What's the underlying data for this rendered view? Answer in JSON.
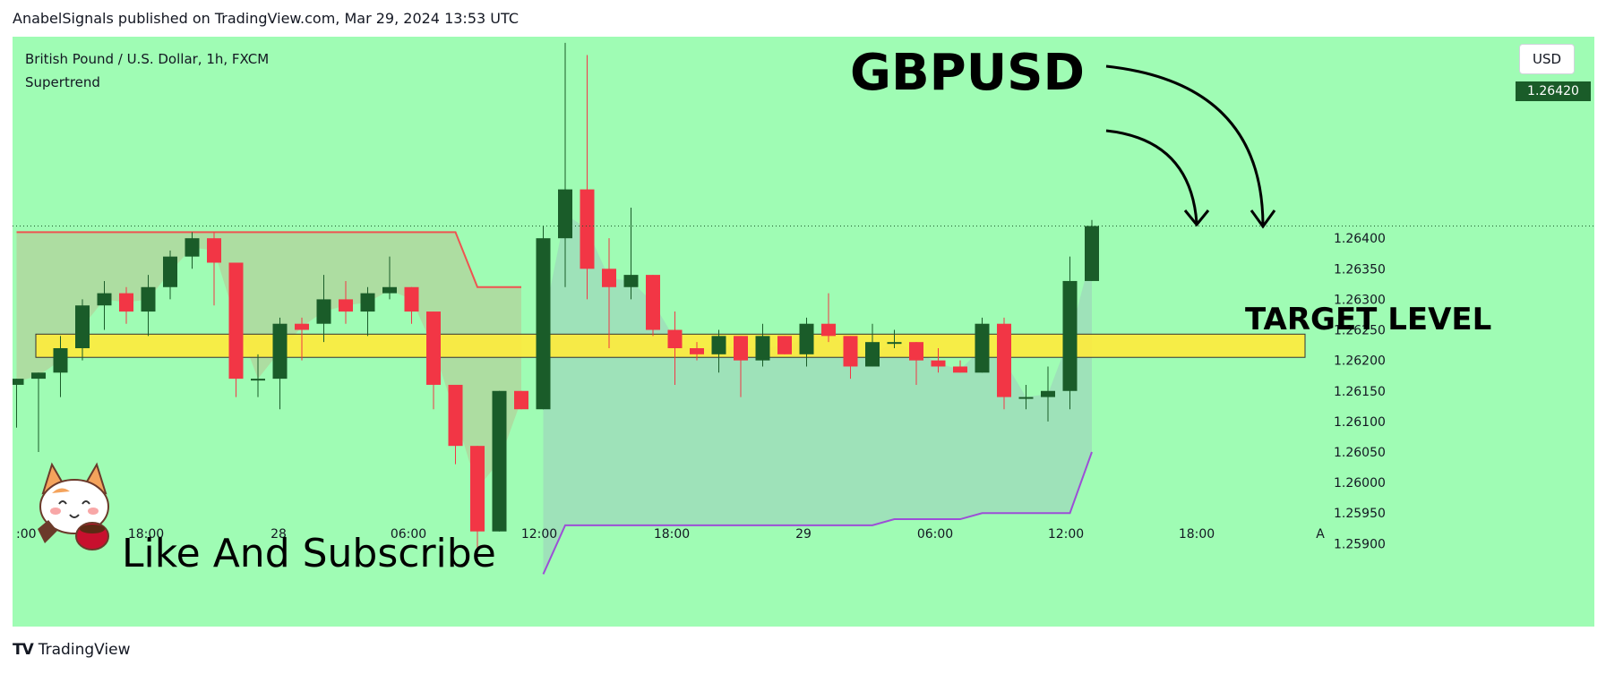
{
  "header": {
    "published_line": "AnabelSignals published on TradingView.com, Mar 29, 2024 13:53 UTC"
  },
  "legend": {
    "symbol_line": "British Pound / U.S. Dollar, 1h, FXCM",
    "indicator": "Supertrend"
  },
  "toolbar": {
    "currency_label": "USD"
  },
  "annotations": {
    "title": "GBPUSD",
    "target_label": "TARGET LEVEL",
    "cta": "Like And Subscribe"
  },
  "footer": {
    "brand": "TradingView"
  },
  "colors": {
    "background": "#9ffcb4",
    "up": "#1a5c29",
    "down": "#f23645",
    "zone": "#ffeb3b",
    "st_down": "#ef5350",
    "st_up": "#9c4fd6"
  },
  "chart_data": {
    "type": "candlestick",
    "symbol": "GBPUSD",
    "timeframe": "1h",
    "last_price": "1.26420",
    "ylim": [
      1.2588,
      1.2673
    ],
    "y_ticks": [
      "1.26400",
      "1.26350",
      "1.26300",
      "1.26250",
      "1.26200",
      "1.26150",
      "1.26100",
      "1.26050",
      "1.26000",
      "1.25950",
      "1.25900"
    ],
    "x_ticks": [
      ":00",
      "18:00",
      "28",
      "06:00",
      "12:00",
      "18:00",
      "29",
      "06:00",
      "12:00",
      "18:00",
      "A"
    ],
    "target_zone": [
      1.26205,
      1.26243
    ],
    "candles": [
      {
        "o": 1.2616,
        "h": 1.2617,
        "l": 1.2609,
        "c": 1.2617
      },
      {
        "o": 1.2617,
        "h": 1.2618,
        "l": 1.2605,
        "c": 1.2618
      },
      {
        "o": 1.2618,
        "h": 1.2624,
        "l": 1.2614,
        "c": 1.2622
      },
      {
        "o": 1.2622,
        "h": 1.263,
        "l": 1.262,
        "c": 1.2629
      },
      {
        "o": 1.2629,
        "h": 1.2633,
        "l": 1.2625,
        "c": 1.2631
      },
      {
        "o": 1.2631,
        "h": 1.2632,
        "l": 1.2626,
        "c": 1.2628
      },
      {
        "o": 1.2628,
        "h": 1.2634,
        "l": 1.2624,
        "c": 1.2632
      },
      {
        "o": 1.2632,
        "h": 1.2638,
        "l": 1.263,
        "c": 1.2637
      },
      {
        "o": 1.2637,
        "h": 1.2641,
        "l": 1.2635,
        "c": 1.264
      },
      {
        "o": 1.264,
        "h": 1.2641,
        "l": 1.2629,
        "c": 1.2636
      },
      {
        "o": 1.2636,
        "h": 1.2636,
        "l": 1.2614,
        "c": 1.2617
      },
      {
        "o": 1.2617,
        "h": 1.2621,
        "l": 1.2614,
        "c": 1.2617
      },
      {
        "o": 1.2617,
        "h": 1.2627,
        "l": 1.2612,
        "c": 1.2626
      },
      {
        "o": 1.2626,
        "h": 1.2627,
        "l": 1.262,
        "c": 1.2625
      },
      {
        "o": 1.2626,
        "h": 1.2634,
        "l": 1.2623,
        "c": 1.263
      },
      {
        "o": 1.263,
        "h": 1.2633,
        "l": 1.2626,
        "c": 1.2628
      },
      {
        "o": 1.2628,
        "h": 1.2632,
        "l": 1.2624,
        "c": 1.2631
      },
      {
        "o": 1.2631,
        "h": 1.2637,
        "l": 1.263,
        "c": 1.2632
      },
      {
        "o": 1.2632,
        "h": 1.2632,
        "l": 1.2626,
        "c": 1.2628
      },
      {
        "o": 1.2628,
        "h": 1.2628,
        "l": 1.2612,
        "c": 1.2616
      },
      {
        "o": 1.2616,
        "h": 1.2616,
        "l": 1.2603,
        "c": 1.2606
      },
      {
        "o": 1.2606,
        "h": 1.2606,
        "l": 1.2589,
        "c": 1.2592
      },
      {
        "o": 1.2592,
        "h": 1.2615,
        "l": 1.2592,
        "c": 1.2615
      },
      {
        "o": 1.2615,
        "h": 1.2615,
        "l": 1.2612,
        "c": 1.2612
      },
      {
        "o": 1.2612,
        "h": 1.2642,
        "l": 1.2612,
        "c": 1.264
      },
      {
        "o": 1.264,
        "h": 1.2672,
        "l": 1.2632,
        "c": 1.2648
      },
      {
        "o": 1.2648,
        "h": 1.267,
        "l": 1.263,
        "c": 1.2635
      },
      {
        "o": 1.2635,
        "h": 1.264,
        "l": 1.2622,
        "c": 1.2632
      },
      {
        "o": 1.2632,
        "h": 1.2645,
        "l": 1.263,
        "c": 1.2634
      },
      {
        "o": 1.2634,
        "h": 1.2634,
        "l": 1.2624,
        "c": 1.2625
      },
      {
        "o": 1.2625,
        "h": 1.2628,
        "l": 1.2616,
        "c": 1.2622
      },
      {
        "o": 1.2622,
        "h": 1.2623,
        "l": 1.262,
        "c": 1.2621
      },
      {
        "o": 1.2621,
        "h": 1.2625,
        "l": 1.2618,
        "c": 1.2624
      },
      {
        "o": 1.2624,
        "h": 1.2624,
        "l": 1.2614,
        "c": 1.262
      },
      {
        "o": 1.262,
        "h": 1.2626,
        "l": 1.2619,
        "c": 1.2624
      },
      {
        "o": 1.2624,
        "h": 1.2624,
        "l": 1.2621,
        "c": 1.2621
      },
      {
        "o": 1.2621,
        "h": 1.2627,
        "l": 1.2619,
        "c": 1.2626
      },
      {
        "o": 1.2626,
        "h": 1.2631,
        "l": 1.2623,
        "c": 1.2624
      },
      {
        "o": 1.2624,
        "h": 1.2624,
        "l": 1.2617,
        "c": 1.2619
      },
      {
        "o": 1.2619,
        "h": 1.2626,
        "l": 1.2619,
        "c": 1.2623
      },
      {
        "o": 1.2623,
        "h": 1.2625,
        "l": 1.2622,
        "c": 1.2623
      },
      {
        "o": 1.2623,
        "h": 1.2623,
        "l": 1.2616,
        "c": 1.262
      },
      {
        "o": 1.262,
        "h": 1.2622,
        "l": 1.2618,
        "c": 1.2619
      },
      {
        "o": 1.2619,
        "h": 1.262,
        "l": 1.2618,
        "c": 1.2618
      },
      {
        "o": 1.2618,
        "h": 1.2627,
        "l": 1.2618,
        "c": 1.2626
      },
      {
        "o": 1.2626,
        "h": 1.2627,
        "l": 1.2612,
        "c": 1.2614
      },
      {
        "o": 1.2614,
        "h": 1.2616,
        "l": 1.2612,
        "c": 1.2614
      },
      {
        "o": 1.2614,
        "h": 1.2619,
        "l": 1.261,
        "c": 1.2615
      },
      {
        "o": 1.2615,
        "h": 1.2637,
        "l": 1.2612,
        "c": 1.2633
      },
      {
        "o": 1.2633,
        "h": 1.2643,
        "l": 1.2633,
        "c": 1.2642
      }
    ],
    "supertrend_down": {
      "start": 0,
      "values": [
        1.2641,
        1.2641,
        1.2641,
        1.2641,
        1.2641,
        1.2641,
        1.2641,
        1.2641,
        1.2641,
        1.2641,
        1.2641,
        1.2641,
        1.2641,
        1.2641,
        1.2641,
        1.2641,
        1.2641,
        1.2641,
        1.2641,
        1.2641,
        1.2641,
        1.2632,
        1.2632,
        1.2632
      ]
    },
    "supertrend_up": {
      "start": 24,
      "values": [
        1.2585,
        1.2593,
        1.2593,
        1.2593,
        1.2593,
        1.2593,
        1.2593,
        1.2593,
        1.2593,
        1.2593,
        1.2593,
        1.2593,
        1.2593,
        1.2593,
        1.2593,
        1.2593,
        1.2594,
        1.2594,
        1.2594,
        1.2594,
        1.2595,
        1.2595,
        1.2595,
        1.2595,
        1.2595,
        1.2605
      ]
    }
  }
}
